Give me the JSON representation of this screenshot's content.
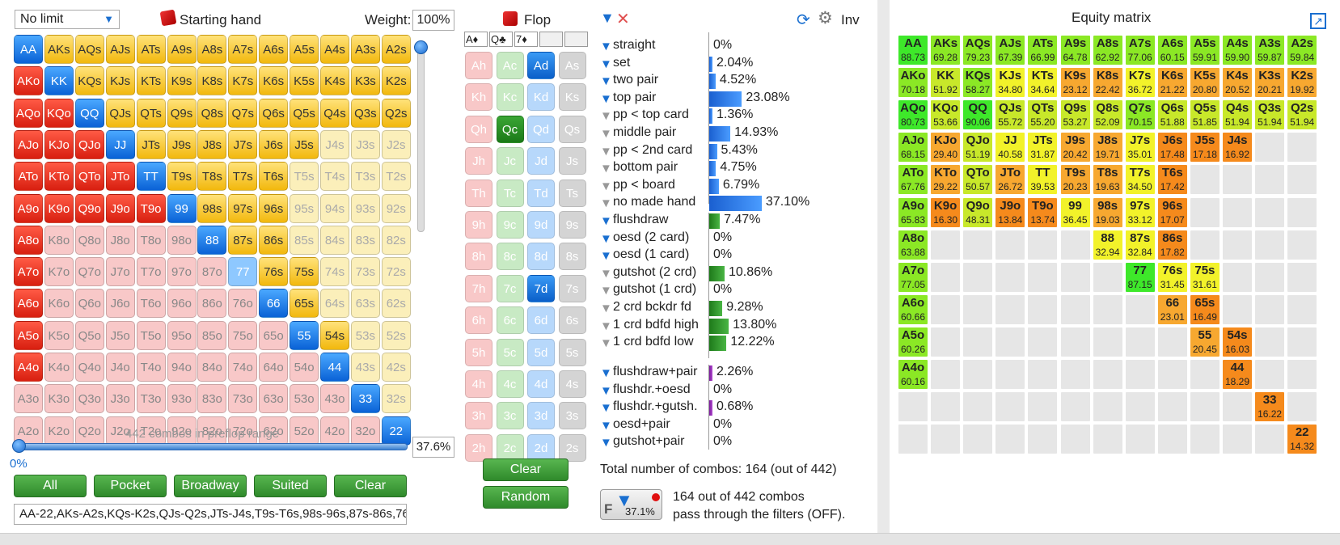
{
  "range_panel": {
    "limit_select": "No limit",
    "starting_hand_label": "Starting hand",
    "weight_label": "Weight:",
    "weight_value": "100%",
    "combos_text": "442 combos in preflop range",
    "slider_value": "0%",
    "percent_value": "37.6%",
    "range_text": "AA-22,AKs-A2s,KQs-K2s,QJs-Q2s,JTs-J4s,T9s-T6s,98s-96s,87s-86s,76"
  },
  "range_buttons": [
    "All",
    "Pocket",
    "Broadway",
    "Suited",
    "Clear"
  ],
  "ranks": [
    "A",
    "K",
    "Q",
    "J",
    "T",
    "9",
    "8",
    "7",
    "6",
    "5",
    "4",
    "3",
    "2"
  ],
  "hand_grid_states": [
    "PYYYYYYYYYYYY",
    "RPYYYYYYYYYYY",
    "RRPYYYYYYYYYY",
    "RRRPYYYYYYyyy",
    "RRRRPYYYYyyyy",
    "RRRRRPYYYyyyy",
    "RrrrrrPYYyyyy",
    "RrrrrrrpYYyyy",
    "RrrrrrrrPYyyy",
    "RrrrrrrrrPYyy",
    "RrrrrrrrrrPyy",
    "rrrrrrrrrrrPy",
    "rrrrrrrrrrrrP"
  ],
  "flop": {
    "label": "Flop",
    "slots": [
      "A♦",
      "Q♣",
      "7♦",
      "",
      ""
    ],
    "clear_label": "Clear",
    "random_label": "Random"
  },
  "card_ranks": [
    "A",
    "K",
    "Q",
    "J",
    "T",
    "9",
    "8",
    "7",
    "6",
    "5",
    "4",
    "3",
    "2"
  ],
  "card_suits": [
    "h",
    "c",
    "d",
    "s"
  ],
  "selected_cards": [
    "Ad",
    "Qc",
    "7d"
  ],
  "filters_header": {
    "inv_label": "Inv"
  },
  "made_hands": [
    {
      "label": "straight",
      "value": "0%",
      "pct": 0,
      "active": true
    },
    {
      "label": "set",
      "value": "2.04%",
      "pct": 2.04,
      "active": true
    },
    {
      "label": "two pair",
      "value": "4.52%",
      "pct": 4.52,
      "active": true
    },
    {
      "label": "top pair",
      "value": "23.08%",
      "pct": 23.08,
      "active": true
    },
    {
      "label": "pp < top card",
      "value": "1.36%",
      "pct": 1.36,
      "active": false
    },
    {
      "label": "middle pair",
      "value": "14.93%",
      "pct": 14.93,
      "active": false
    },
    {
      "label": "pp < 2nd card",
      "value": "5.43%",
      "pct": 5.43,
      "active": false
    },
    {
      "label": "bottom pair",
      "value": "4.75%",
      "pct": 4.75,
      "active": false
    },
    {
      "label": "pp < board",
      "value": "6.79%",
      "pct": 6.79,
      "active": false
    },
    {
      "label": "no made hand",
      "value": "37.10%",
      "pct": 37.1,
      "active": false
    }
  ],
  "draws": [
    {
      "label": "flushdraw",
      "value": "7.47%",
      "pct": 7.47,
      "active": true
    },
    {
      "label": "oesd (2 card)",
      "value": "0%",
      "pct": 0,
      "active": true
    },
    {
      "label": "oesd (1 card)",
      "value": "0%",
      "pct": 0,
      "active": true
    },
    {
      "label": "gutshot (2 crd)",
      "value": "10.86%",
      "pct": 10.86,
      "active": false
    },
    {
      "label": "gutshot (1 crd)",
      "value": "0%",
      "pct": 0,
      "active": false
    },
    {
      "label": "2 crd bckdr fd",
      "value": "9.28%",
      "pct": 9.28,
      "active": false
    },
    {
      "label": "1 crd bdfd high",
      "value": "13.80%",
      "pct": 13.8,
      "active": false
    },
    {
      "label": "1 crd bdfd low",
      "value": "12.22%",
      "pct": 12.22,
      "active": false
    }
  ],
  "combos": [
    {
      "label": "flushdraw+pair",
      "value": "2.26%",
      "pct": 2.26,
      "active": true
    },
    {
      "label": "flushdr.+oesd",
      "value": "0%",
      "pct": 0,
      "active": true
    },
    {
      "label": "flushdr.+gutsh.",
      "value": "0.68%",
      "pct": 0.68,
      "active": true
    },
    {
      "label": "oesd+pair",
      "value": "0%",
      "pct": 0,
      "active": true
    },
    {
      "label": "gutshot+pair",
      "value": "0%",
      "pct": 0,
      "active": true
    }
  ],
  "totals": {
    "total_text": "Total number of combos: 164 (out of 442)",
    "filter_pct": "37.1%",
    "filter_letter": "F",
    "pass_line1": "164 out of 442 combos",
    "pass_line2": "pass through the filters (OFF)."
  },
  "equity": {
    "title": "Equity matrix",
    "cells": [
      [
        "AA",
        88.73,
        0,
        0
      ],
      [
        "AKs",
        69.28,
        0,
        1
      ],
      [
        "AQs",
        79.23,
        0,
        2
      ],
      [
        "AJs",
        67.39,
        0,
        3
      ],
      [
        "ATs",
        66.99,
        0,
        4
      ],
      [
        "A9s",
        64.78,
        0,
        5
      ],
      [
        "A8s",
        62.92,
        0,
        6
      ],
      [
        "A7s",
        77.06,
        0,
        7
      ],
      [
        "A6s",
        60.15,
        0,
        8
      ],
      [
        "A5s",
        59.91,
        0,
        9
      ],
      [
        "A4s",
        59.9,
        0,
        10
      ],
      [
        "A3s",
        59.87,
        0,
        11
      ],
      [
        "A2s",
        59.84,
        0,
        12
      ],
      [
        "AKo",
        70.18,
        1,
        0
      ],
      [
        "KK",
        51.92,
        1,
        1
      ],
      [
        "KQs",
        58.27,
        1,
        2
      ],
      [
        "KJs",
        34.8,
        1,
        3
      ],
      [
        "KTs",
        34.64,
        1,
        4
      ],
      [
        "K9s",
        23.12,
        1,
        5
      ],
      [
        "K8s",
        22.42,
        1,
        6
      ],
      [
        "K7s",
        36.72,
        1,
        7
      ],
      [
        "K6s",
        21.22,
        1,
        8
      ],
      [
        "K5s",
        20.8,
        1,
        9
      ],
      [
        "K4s",
        20.52,
        1,
        10
      ],
      [
        "K3s",
        20.21,
        1,
        11
      ],
      [
        "K2s",
        19.92,
        1,
        12
      ],
      [
        "AQo",
        80.73,
        2,
        0
      ],
      [
        "KQo",
        53.66,
        2,
        1
      ],
      [
        "QQ",
        90.06,
        2,
        2
      ],
      [
        "QJs",
        55.72,
        2,
        3
      ],
      [
        "QTs",
        55.2,
        2,
        4
      ],
      [
        "Q9s",
        53.27,
        2,
        5
      ],
      [
        "Q8s",
        52.09,
        2,
        6
      ],
      [
        "Q7s",
        70.15,
        2,
        7
      ],
      [
        "Q6s",
        51.88,
        2,
        8
      ],
      [
        "Q5s",
        51.85,
        2,
        9
      ],
      [
        "Q4s",
        51.94,
        2,
        10
      ],
      [
        "Q3s",
        51.94,
        2,
        11
      ],
      [
        "Q2s",
        51.94,
        2,
        12
      ],
      [
        "AJo",
        68.15,
        3,
        0
      ],
      [
        "KJo",
        29.4,
        3,
        1
      ],
      [
        "QJo",
        51.19,
        3,
        2
      ],
      [
        "JJ",
        40.58,
        3,
        3
      ],
      [
        "JTs",
        31.87,
        3,
        4
      ],
      [
        "J9s",
        20.42,
        3,
        5
      ],
      [
        "J8s",
        19.71,
        3,
        6
      ],
      [
        "J7s",
        35.01,
        3,
        7
      ],
      [
        "J6s",
        17.48,
        3,
        8
      ],
      [
        "J5s",
        17.18,
        3,
        9
      ],
      [
        "J4s",
        16.92,
        3,
        10
      ],
      [
        "ATo",
        67.76,
        4,
        0
      ],
      [
        "KTo",
        29.22,
        4,
        1
      ],
      [
        "QTo",
        50.57,
        4,
        2
      ],
      [
        "JTo",
        26.72,
        4,
        3
      ],
      [
        "TT",
        39.53,
        4,
        4
      ],
      [
        "T9s",
        20.23,
        4,
        5
      ],
      [
        "T8s",
        19.63,
        4,
        6
      ],
      [
        "T7s",
        34.5,
        4,
        7
      ],
      [
        "T6s",
        17.42,
        4,
        8
      ],
      [
        "A9o",
        65.83,
        5,
        0
      ],
      [
        "K9o",
        16.3,
        5,
        1
      ],
      [
        "Q9o",
        48.31,
        5,
        2
      ],
      [
        "J9o",
        13.84,
        5,
        3
      ],
      [
        "T9o",
        13.74,
        5,
        4
      ],
      [
        "99",
        36.45,
        5,
        5
      ],
      [
        "98s",
        19.03,
        5,
        6
      ],
      [
        "97s",
        33.12,
        5,
        7
      ],
      [
        "96s",
        17.07,
        5,
        8
      ],
      [
        "A8o",
        63.88,
        6,
        0
      ],
      [
        "88",
        32.94,
        6,
        6
      ],
      [
        "87s",
        32.84,
        6,
        7
      ],
      [
        "86s",
        17.82,
        6,
        8
      ],
      [
        "A7o",
        77.05,
        7,
        0
      ],
      [
        "77",
        87.15,
        7,
        7
      ],
      [
        "76s",
        31.45,
        7,
        8
      ],
      [
        "75s",
        31.61,
        7,
        9
      ],
      [
        "A6o",
        60.66,
        8,
        0
      ],
      [
        "66",
        23.01,
        8,
        8
      ],
      [
        "65s",
        16.49,
        8,
        9
      ],
      [
        "A5o",
        60.26,
        9,
        0
      ],
      [
        "55",
        20.45,
        9,
        9
      ],
      [
        "54s",
        16.03,
        9,
        10
      ],
      [
        "A4o",
        60.16,
        10,
        0
      ],
      [
        "44",
        18.29,
        10,
        10
      ],
      [
        "33",
        16.22,
        11,
        11
      ],
      [
        "22",
        14.32,
        12,
        12
      ]
    ]
  }
}
